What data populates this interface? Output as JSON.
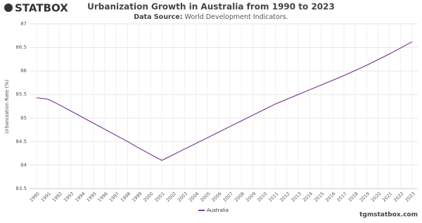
{
  "logo": "STATBOX",
  "footer": "tgmstatbox.com",
  "chart_data": {
    "type": "line",
    "title": "Urbanization Growth in Australia from 1990 to 2023",
    "subtitle_label": "Data Source:",
    "subtitle": "World Development Indicators.",
    "y_label": "Urbanization Rate (%)",
    "categories": [
      "1990",
      "1991",
      "1992",
      "1993",
      "1994",
      "1995",
      "1996",
      "1997",
      "1998",
      "1999",
      "2000",
      "2001",
      "2002",
      "2003",
      "2004",
      "2005",
      "2006",
      "2007",
      "2008",
      "2009",
      "2010",
      "2011",
      "2012",
      "2013",
      "2014",
      "2015",
      "2016",
      "2017",
      "2018",
      "2019",
      "2020",
      "2021",
      "2022",
      "2023"
    ],
    "series": [
      {
        "name": "Australia",
        "color": "#7b3f98",
        "values": [
          85.43,
          85.4,
          85.28,
          85.15,
          85.02,
          84.89,
          84.76,
          84.63,
          84.5,
          84.36,
          84.23,
          84.1,
          84.22,
          84.34,
          84.46,
          84.58,
          84.7,
          84.82,
          84.94,
          85.06,
          85.18,
          85.3,
          85.4,
          85.5,
          85.6,
          85.7,
          85.8,
          85.9,
          86.01,
          86.12,
          86.24,
          86.36,
          86.49,
          86.62
        ]
      }
    ],
    "ylim": [
      83.5,
      87
    ],
    "yticks": [
      83.5,
      84,
      84.5,
      85,
      85.5,
      86,
      86.5,
      87
    ],
    "grid": true,
    "legend": "bottom"
  }
}
